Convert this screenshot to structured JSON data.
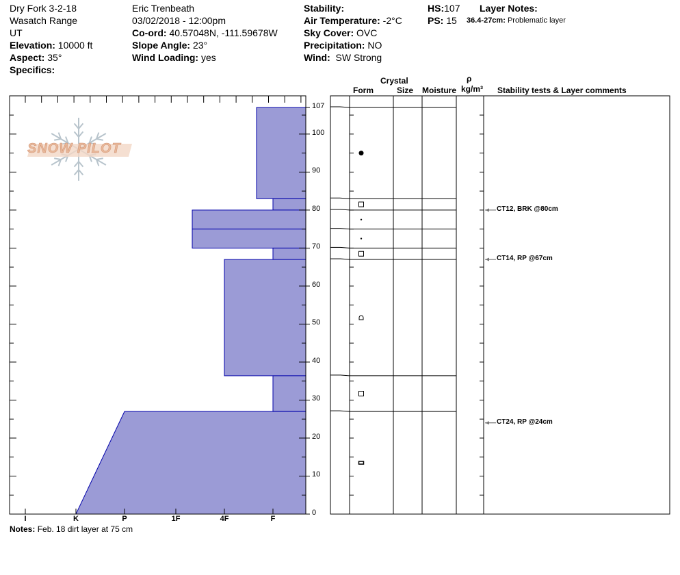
{
  "header": {
    "col1": [
      "Dry Fork 3-2-18",
      "Wasatch Range",
      "UT"
    ],
    "elevation_label": "Elevation:",
    "elevation": "10000 ft",
    "aspect_label": "Aspect:",
    "aspect": "35°",
    "specifics_label": "Specifics:",
    "observer": "Eric Trenbeath",
    "datetime": "03/02/2018 - 12:00pm",
    "coord_label": "Co-ord:",
    "coord": "40.57048N, -111.59678W",
    "slope_label": "Slope Angle:",
    "slope": "23°",
    "wind_loading_label": "Wind Loading:",
    "wind_loading": "yes",
    "stability_label": "Stability:",
    "air_temp_label": "Air Temperature:",
    "air_temp": "-2°C",
    "sky_label": "Sky Cover:",
    "sky": "OVC",
    "precip_label": "Precipitation:",
    "precip": "NO",
    "wind_label": "Wind:",
    "wind": "SW Strong",
    "hs_label": "HS:",
    "hs": "107",
    "ps_label": "PS:",
    "ps": "15",
    "layer_notes_label": "Layer Notes:",
    "layer_note_range": "36.4-27cm:",
    "layer_note_text": "Problematic layer"
  },
  "columns": {
    "crystal": "Crystal",
    "form": "Form",
    "size": "Size",
    "moisture": "Moisture",
    "rho": "ρ",
    "density_unit": "kg/m³",
    "comments": "Stability tests & Layer comments"
  },
  "notes_label": "Notes:",
  "notes": "Feb. 18 dirt layer at 75 cm",
  "logo_text": "SNOW PILOT",
  "colors": {
    "hardness_fill": "#9b9bd6",
    "hardness_edge": "#0000aa"
  },
  "chart_data": {
    "type": "bar",
    "orientation": "horizontal",
    "ylabel_ticks": [
      "0",
      "10",
      "20",
      "30",
      "40",
      "50",
      "60",
      "70",
      "80",
      "90",
      "100",
      "107"
    ],
    "ylim": [
      0,
      107
    ],
    "hardness_ticks": [
      "I",
      "K",
      "P",
      "1F",
      "4F",
      "F"
    ],
    "layers": [
      {
        "top": 107,
        "bottom": 83,
        "hardness": "F+",
        "form": "graupel"
      },
      {
        "top": 83,
        "bottom": 80,
        "hardness": "F",
        "form": "facets"
      },
      {
        "top": 80,
        "bottom": 75,
        "hardness": "1F-",
        "form": "dot"
      },
      {
        "top": 75,
        "bottom": 70,
        "hardness": "1F-",
        "form": "dot"
      },
      {
        "top": 70,
        "bottom": 67,
        "hardness": "F",
        "form": "facets"
      },
      {
        "top": 67,
        "bottom": 36.4,
        "hardness": "4F",
        "form": "faceted-rounded"
      },
      {
        "top": 36.4,
        "bottom": 27,
        "hardness": "F",
        "form": "facets"
      },
      {
        "top": 27,
        "bottom": 0,
        "hardness_top": "P",
        "hardness_bottom": "K",
        "form": "crust"
      }
    ],
    "stability_tests": [
      {
        "depth": 80,
        "label": "CT12, BRK @80cm"
      },
      {
        "depth": 67,
        "label": "CT14, RP @67cm"
      },
      {
        "depth": 24,
        "label": "CT24, RP @24cm"
      }
    ]
  }
}
